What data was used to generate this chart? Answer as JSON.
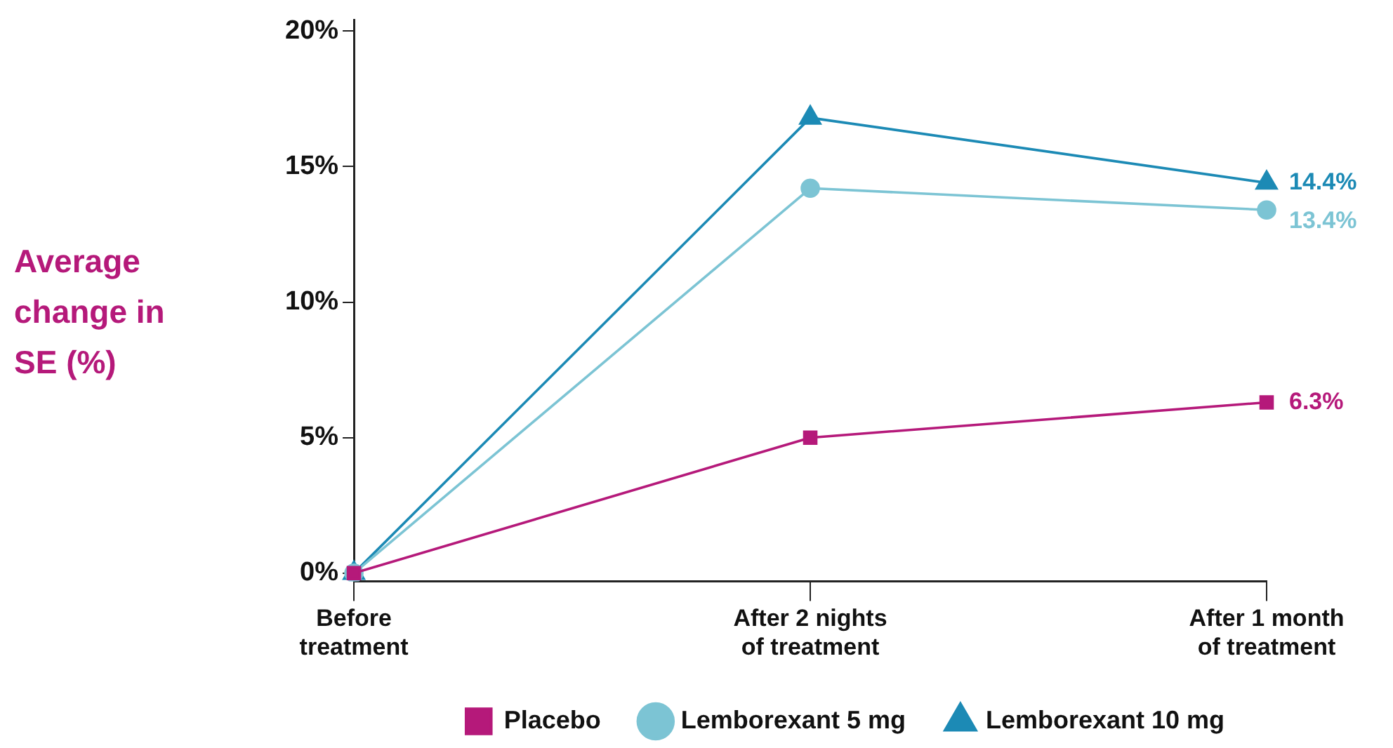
{
  "chart_data": {
    "type": "line",
    "ylabel": "Average change in SE (%)",
    "categories": [
      "Before treatment",
      "After 2 nights of treatment",
      "After 1 month of treatment"
    ],
    "ylim": [
      -0.3,
      20.4
    ],
    "yticks": [
      {
        "value": 0,
        "label": "0%"
      },
      {
        "value": 5,
        "label": "5%"
      },
      {
        "value": 10,
        "label": "10%"
      },
      {
        "value": 15,
        "label": "15%"
      },
      {
        "value": 20,
        "label": "20%"
      }
    ],
    "series": [
      {
        "name": "Placebo",
        "color": "#b5197a",
        "marker": "square",
        "values": [
          0,
          5.0,
          6.3
        ],
        "value_labels": [
          null,
          null,
          "6.3%"
        ]
      },
      {
        "name": "Lemborexant 5 mg",
        "color": "#7cc4d4",
        "marker": "circle",
        "values": [
          0,
          14.2,
          13.4
        ],
        "value_labels": [
          null,
          null,
          "13.4%"
        ]
      },
      {
        "name": "Lemborexant 10 mg",
        "color": "#1c8ab5",
        "marker": "triangle",
        "values": [
          0,
          16.8,
          14.4
        ],
        "value_labels": [
          null,
          null,
          "14.4%"
        ]
      }
    ],
    "grid": false,
    "legend": "bottom"
  }
}
